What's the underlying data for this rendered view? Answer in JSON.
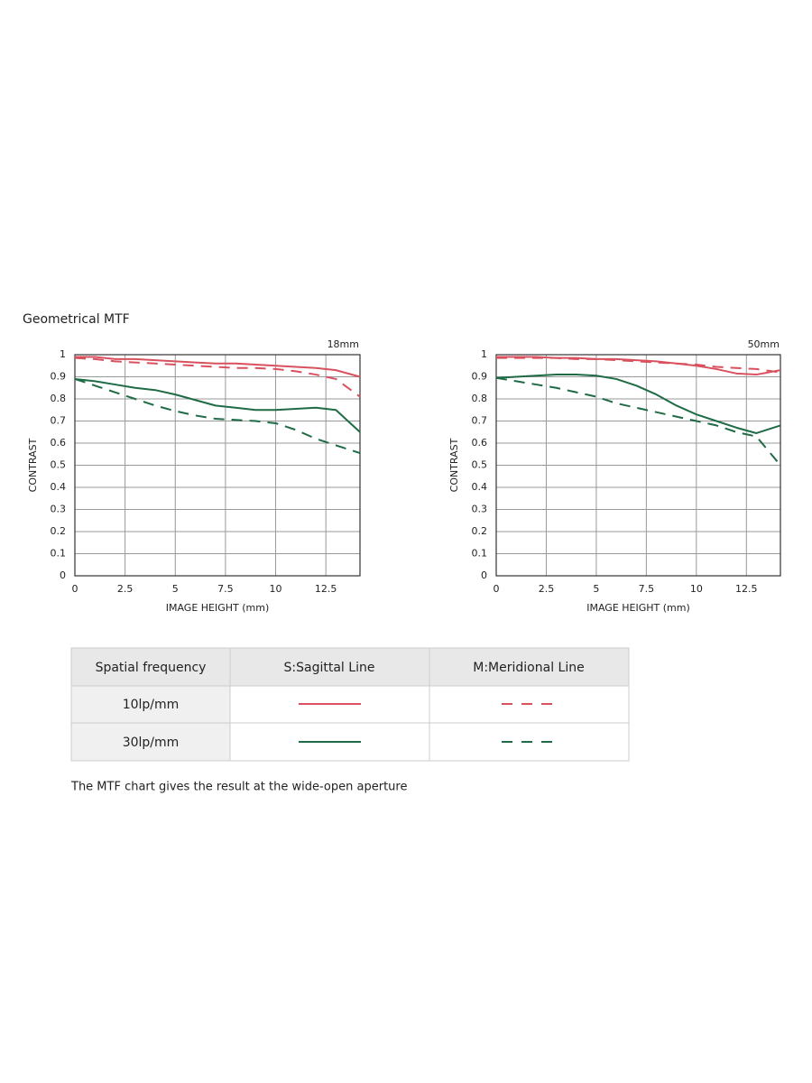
{
  "heading": "Geometrical MTF",
  "chart_data": [
    {
      "type": "line",
      "title": "18mm",
      "xlabel": "IMAGE HEIGHT (mm)",
      "ylabel": "CONTRAST",
      "x": [
        0,
        1,
        2,
        3,
        4,
        5,
        6,
        7,
        8,
        9,
        10,
        11,
        12,
        13,
        14.2
      ],
      "xlim": [
        0,
        14.2
      ],
      "xticks": [
        0,
        2.5,
        5,
        7.5,
        10,
        12.5
      ],
      "ylim": [
        0,
        1
      ],
      "yticks": [
        0,
        0.1,
        0.2,
        0.3,
        0.4,
        0.5,
        0.6,
        0.7,
        0.8,
        0.9,
        1
      ],
      "grid": true,
      "series": [
        {
          "color": "#d9515e",
          "dashed": false,
          "values": [
            0.99,
            0.99,
            0.98,
            0.98,
            0.975,
            0.97,
            0.965,
            0.96,
            0.96,
            0.955,
            0.95,
            0.945,
            0.94,
            0.93,
            0.9
          ]
        },
        {
          "color": "#d9515e",
          "dashed": true,
          "values": [
            0.985,
            0.98,
            0.97,
            0.965,
            0.96,
            0.955,
            0.95,
            0.945,
            0.94,
            0.94,
            0.935,
            0.925,
            0.91,
            0.89,
            0.81
          ]
        },
        {
          "color": "#1e6b45",
          "dashed": false,
          "values": [
            0.89,
            0.88,
            0.865,
            0.85,
            0.84,
            0.82,
            0.795,
            0.77,
            0.76,
            0.75,
            0.75,
            0.755,
            0.76,
            0.75,
            0.65
          ]
        },
        {
          "color": "#1e6b45",
          "dashed": true,
          "values": [
            0.89,
            0.86,
            0.83,
            0.8,
            0.77,
            0.745,
            0.725,
            0.71,
            0.705,
            0.7,
            0.69,
            0.66,
            0.62,
            0.59,
            0.555
          ]
        }
      ]
    },
    {
      "type": "line",
      "title": "50mm",
      "xlabel": "IMAGE HEIGHT (mm)",
      "ylabel": "CONTRAST",
      "x": [
        0,
        1,
        2,
        3,
        4,
        5,
        6,
        7,
        8,
        9,
        10,
        11,
        12,
        13,
        14.2
      ],
      "xlim": [
        0,
        14.2
      ],
      "xticks": [
        0,
        2.5,
        5,
        7.5,
        10,
        12.5
      ],
      "ylim": [
        0,
        1
      ],
      "yticks": [
        0,
        0.1,
        0.2,
        0.3,
        0.4,
        0.5,
        0.6,
        0.7,
        0.8,
        0.9,
        1
      ],
      "grid": true,
      "series": [
        {
          "color": "#d9515e",
          "dashed": false,
          "values": [
            0.99,
            0.99,
            0.99,
            0.985,
            0.985,
            0.98,
            0.98,
            0.975,
            0.97,
            0.96,
            0.95,
            0.935,
            0.915,
            0.91,
            0.93
          ]
        },
        {
          "color": "#d9515e",
          "dashed": true,
          "values": [
            0.985,
            0.985,
            0.985,
            0.985,
            0.98,
            0.98,
            0.975,
            0.97,
            0.965,
            0.96,
            0.955,
            0.945,
            0.94,
            0.935,
            0.92
          ]
        },
        {
          "color": "#1e6b45",
          "dashed": false,
          "values": [
            0.895,
            0.9,
            0.905,
            0.91,
            0.91,
            0.905,
            0.89,
            0.86,
            0.82,
            0.77,
            0.73,
            0.7,
            0.67,
            0.645,
            0.68
          ]
        },
        {
          "color": "#1e6b45",
          "dashed": true,
          "values": [
            0.895,
            0.88,
            0.865,
            0.85,
            0.83,
            0.81,
            0.78,
            0.76,
            0.74,
            0.72,
            0.7,
            0.68,
            0.65,
            0.63,
            0.5
          ]
        }
      ]
    }
  ],
  "table": {
    "header": [
      "Spatial frequency",
      "S:Sagittal Line",
      "M:Meridional Line"
    ],
    "rows": [
      [
        "10lp/mm"
      ],
      [
        "30lp/mm"
      ]
    ]
  },
  "footnote": "The MTF chart gives the result at the wide-open aperture"
}
